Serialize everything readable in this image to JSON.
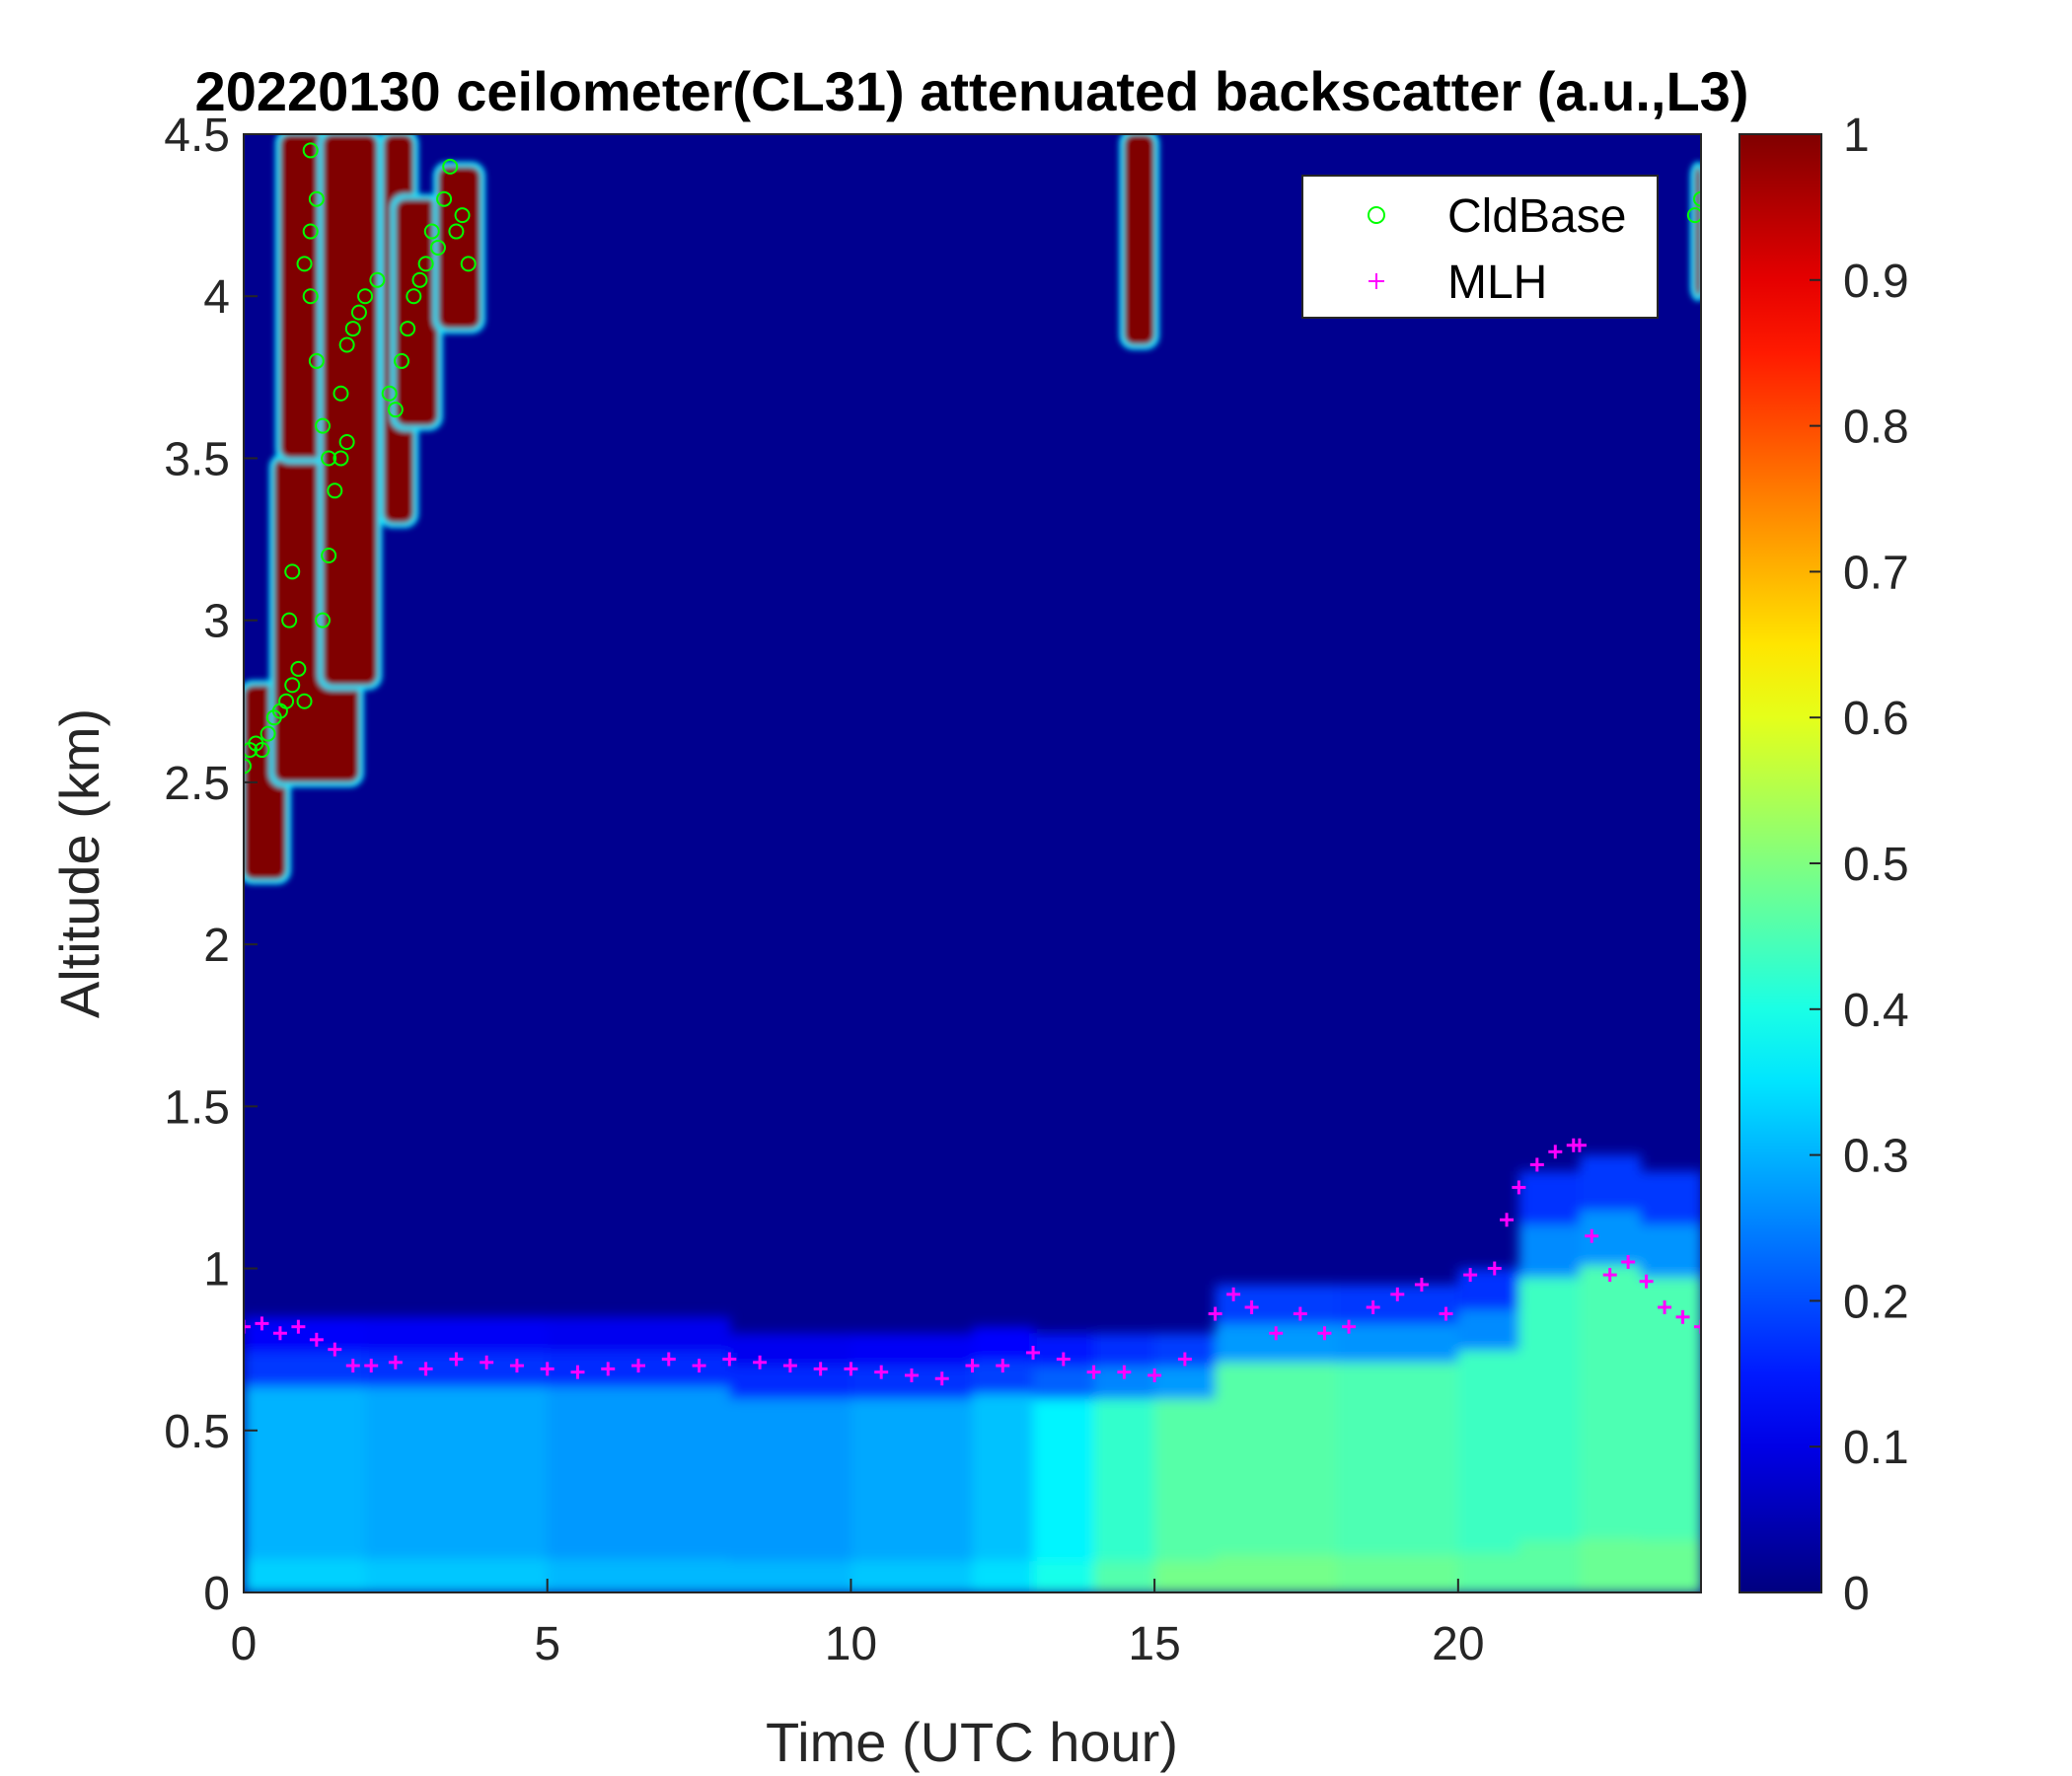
{
  "chart_data": {
    "type": "heatmap",
    "title": "20220130 ceilometer(CL31) attenuated backscatter (a.u.,L3)",
    "xlabel": "Time (UTC hour)",
    "ylabel": "Altitude (km)",
    "xlim": [
      0,
      24
    ],
    "ylim": [
      0,
      4.5
    ],
    "x_ticks": [
      "0",
      "5",
      "10",
      "15",
      "20"
    ],
    "y_ticks": [
      "0",
      "0.5",
      "1",
      "1.5",
      "2",
      "2.5",
      "3",
      "3.5",
      "4",
      "4.5"
    ],
    "colorbar": {
      "colormap": "jet",
      "range": [
        0,
        1
      ],
      "ticks": [
        "0",
        "0.1",
        "0.2",
        "0.3",
        "0.4",
        "0.5",
        "0.6",
        "0.7",
        "0.8",
        "0.9",
        "1"
      ]
    },
    "legend": {
      "position": "top-right",
      "entries": [
        {
          "label": "CldBase",
          "marker": "circle",
          "color": "#00ff00"
        },
        {
          "label": "MLH",
          "marker": "plus",
          "color": "#ff00ff"
        }
      ]
    },
    "background_color": "#00008f",
    "boundary_layer": [
      {
        "x": 0,
        "top": 0.9,
        "value": 0.3
      },
      {
        "x": 2,
        "top": 0.85,
        "value": 0.3
      },
      {
        "x": 5,
        "top": 0.85,
        "value": 0.28
      },
      {
        "x": 8,
        "top": 0.85,
        "value": 0.27
      },
      {
        "x": 10,
        "top": 0.8,
        "value": 0.28
      },
      {
        "x": 12,
        "top": 0.82,
        "value": 0.3
      },
      {
        "x": 13,
        "top": 0.85,
        "value": 0.33
      },
      {
        "x": 14,
        "top": 0.8,
        "value": 0.4
      },
      {
        "x": 15,
        "top": 0.8,
        "value": 0.45
      },
      {
        "x": 16,
        "top": 1.0,
        "value": 0.47
      },
      {
        "x": 18,
        "top": 0.95,
        "value": 0.45
      },
      {
        "x": 20,
        "top": 1.0,
        "value": 0.45
      },
      {
        "x": 21,
        "top": 1.3,
        "value": 0.42
      },
      {
        "x": 22,
        "top": 1.5,
        "value": 0.45
      },
      {
        "x": 23,
        "top": 1.35,
        "value": 0.45
      },
      {
        "x": 24,
        "top": 1.3,
        "value": 0.45
      }
    ],
    "cloud_regions": [
      {
        "x_start": 0.0,
        "x_end": 0.7,
        "y_bottom": 2.2,
        "y_top": 2.8
      },
      {
        "x_start": 0.5,
        "x_end": 1.9,
        "y_bottom": 2.5,
        "y_top": 3.5
      },
      {
        "x_start": 0.6,
        "x_end": 1.6,
        "y_bottom": 3.5,
        "y_top": 4.5
      },
      {
        "x_start": 1.3,
        "x_end": 2.2,
        "y_bottom": 2.8,
        "y_top": 4.5
      },
      {
        "x_start": 2.3,
        "x_end": 2.8,
        "y_bottom": 3.3,
        "y_top": 4.5
      },
      {
        "x_start": 2.5,
        "x_end": 3.2,
        "y_bottom": 3.6,
        "y_top": 4.3
      },
      {
        "x_start": 3.2,
        "x_end": 3.9,
        "y_bottom": 3.9,
        "y_top": 4.4
      },
      {
        "x_start": 14.5,
        "x_end": 15.0,
        "y_bottom": 3.85,
        "y_top": 4.5
      },
      {
        "x_start": 23.9,
        "x_end": 24.0,
        "y_bottom": 4.0,
        "y_top": 4.4
      }
    ],
    "series": [
      {
        "name": "CldBase",
        "x": [
          0.0,
          0.1,
          0.2,
          0.3,
          0.4,
          0.5,
          0.6,
          0.7,
          0.8,
          0.9,
          1.0,
          0.75,
          0.8,
          1.0,
          1.1,
          1.2,
          1.3,
          1.4,
          1.5,
          1.6,
          1.7,
          1.8,
          1.9,
          2.0,
          2.2,
          2.4,
          2.5,
          2.6,
          2.7,
          2.8,
          2.9,
          3.0,
          3.1,
          3.2,
          3.3,
          3.4,
          3.5,
          3.6,
          3.7,
          1.1,
          1.2,
          1.1,
          1.3,
          1.4,
          1.6,
          1.7,
          23.9,
          24.0
        ],
        "y": [
          2.55,
          2.6,
          2.62,
          2.6,
          2.65,
          2.7,
          2.72,
          2.75,
          2.8,
          2.85,
          2.75,
          3.0,
          3.15,
          4.1,
          4.0,
          3.8,
          3.6,
          3.5,
          3.4,
          3.7,
          3.85,
          3.9,
          3.95,
          4.0,
          4.05,
          3.7,
          3.65,
          3.8,
          3.9,
          4.0,
          4.05,
          4.1,
          4.2,
          4.15,
          4.3,
          4.4,
          4.2,
          4.25,
          4.1,
          4.45,
          4.3,
          4.2,
          3.0,
          3.2,
          3.5,
          3.55,
          4.25,
          4.3
        ]
      },
      {
        "name": "MLH",
        "x": [
          0.0,
          0.3,
          0.6,
          0.9,
          1.2,
          1.5,
          1.8,
          2.1,
          2.5,
          3.0,
          3.5,
          4.0,
          4.5,
          5.0,
          5.5,
          6.0,
          6.5,
          7.0,
          7.5,
          8.0,
          8.5,
          9.0,
          9.5,
          10.0,
          10.5,
          11.0,
          11.5,
          12.0,
          12.5,
          13.0,
          13.5,
          14.0,
          14.5,
          15.0,
          15.5,
          16.0,
          16.3,
          16.6,
          17.0,
          17.4,
          17.8,
          18.2,
          18.6,
          19.0,
          19.4,
          19.8,
          20.2,
          20.6,
          20.8,
          21.0,
          21.3,
          21.6,
          21.9,
          22.0,
          22.2,
          22.5,
          22.8,
          23.1,
          23.4,
          23.7,
          24.0
        ],
        "y": [
          0.82,
          0.83,
          0.8,
          0.82,
          0.78,
          0.75,
          0.7,
          0.7,
          0.71,
          0.69,
          0.72,
          0.71,
          0.7,
          0.69,
          0.68,
          0.69,
          0.7,
          0.72,
          0.7,
          0.72,
          0.71,
          0.7,
          0.69,
          0.69,
          0.68,
          0.67,
          0.66,
          0.7,
          0.7,
          0.74,
          0.72,
          0.68,
          0.68,
          0.67,
          0.72,
          0.86,
          0.92,
          0.88,
          0.8,
          0.86,
          0.8,
          0.82,
          0.88,
          0.92,
          0.95,
          0.86,
          0.98,
          1.0,
          1.15,
          1.25,
          1.32,
          1.36,
          1.38,
          1.38,
          1.1,
          0.98,
          1.02,
          0.96,
          0.88,
          0.85,
          0.82
        ]
      }
    ]
  }
}
